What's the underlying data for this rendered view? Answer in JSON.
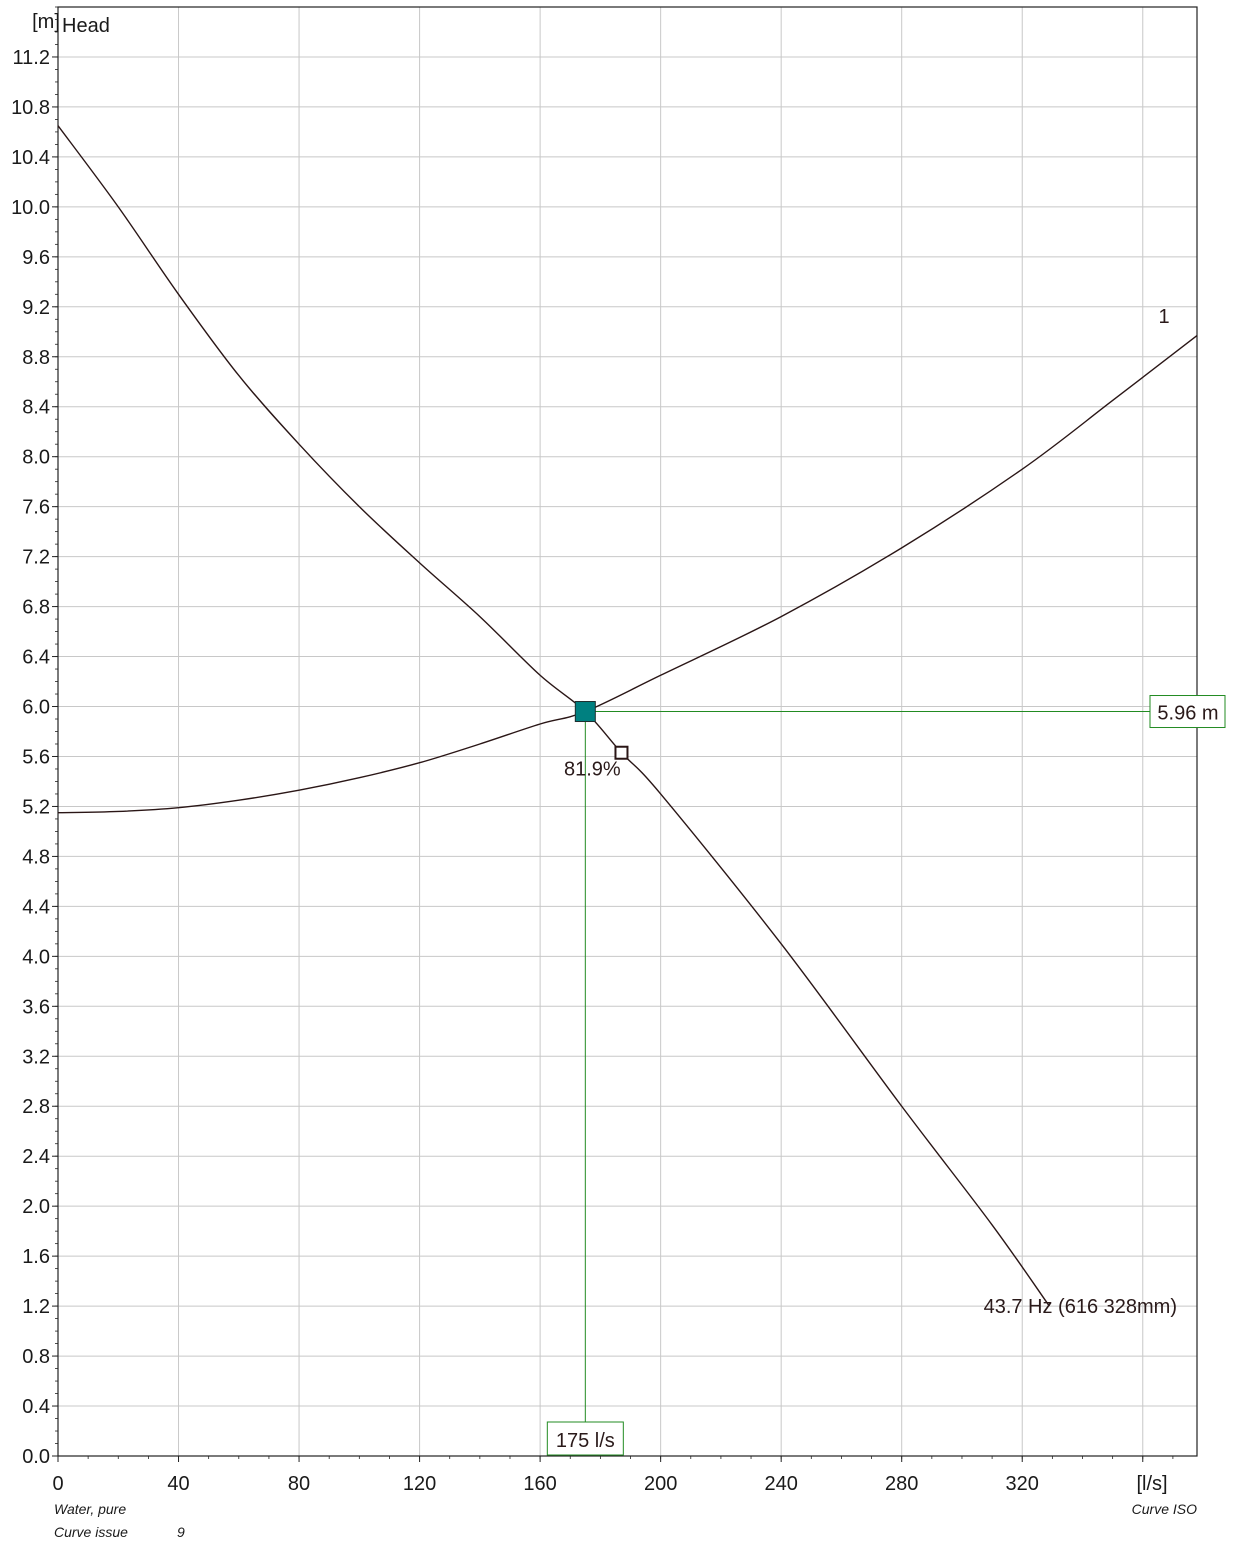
{
  "chart_data": {
    "type": "line",
    "ylabel": "Head",
    "y_unit": "[m]",
    "x_unit": "[l/s]",
    "xlim": [
      0,
      378
    ],
    "ylim": [
      0,
      11.6
    ],
    "x_ticks": [
      "0",
      "40",
      "80",
      "120",
      "160",
      "200",
      "240",
      "280",
      "320"
    ],
    "y_ticks": [
      "0.0",
      "0.4",
      "0.8",
      "1.2",
      "1.6",
      "2.0",
      "2.4",
      "2.8",
      "3.2",
      "3.6",
      "4.0",
      "4.4",
      "4.8",
      "5.2",
      "5.6",
      "6.0",
      "6.4",
      "6.8",
      "7.2",
      "7.6",
      "8.0",
      "8.4",
      "8.8",
      "9.2",
      "9.6",
      "10.0",
      "10.4",
      "10.8",
      "11.2"
    ],
    "grid": true,
    "series": [
      {
        "name": "43.7 Hz (616 328mm)",
        "x": [
          0,
          20,
          40,
          60,
          80,
          100,
          120,
          140,
          160,
          175,
          187,
          200,
          240,
          280,
          310,
          329
        ],
        "y": [
          10.65,
          10.0,
          9.3,
          8.65,
          8.1,
          7.6,
          7.15,
          6.72,
          6.25,
          5.96,
          5.63,
          5.3,
          4.1,
          2.8,
          1.85,
          1.2
        ]
      },
      {
        "name": "1",
        "x": [
          0,
          20,
          40,
          60,
          80,
          100,
          120,
          140,
          160,
          175,
          200,
          240,
          280,
          320,
          350,
          378
        ],
        "y": [
          5.15,
          5.16,
          5.19,
          5.25,
          5.33,
          5.43,
          5.55,
          5.7,
          5.86,
          5.96,
          6.25,
          6.72,
          7.27,
          7.9,
          8.45,
          8.97
        ]
      }
    ],
    "duty_point": {
      "x": 175,
      "y": 5.96,
      "x_label": "175 l/s",
      "y_label": "5.96 m",
      "efficiency_label": "81.9%"
    },
    "bep_point": {
      "x": 187,
      "y": 5.63
    },
    "colors": {
      "curve": "#2a1616",
      "grid": "#c8c8c8",
      "duty_line": "#228b22",
      "duty_marker": "#008080"
    }
  },
  "footer": {
    "fluid": "Water, pure",
    "issue_label": "Curve issue",
    "issue_value": "9",
    "standard": "Curve ISO"
  }
}
